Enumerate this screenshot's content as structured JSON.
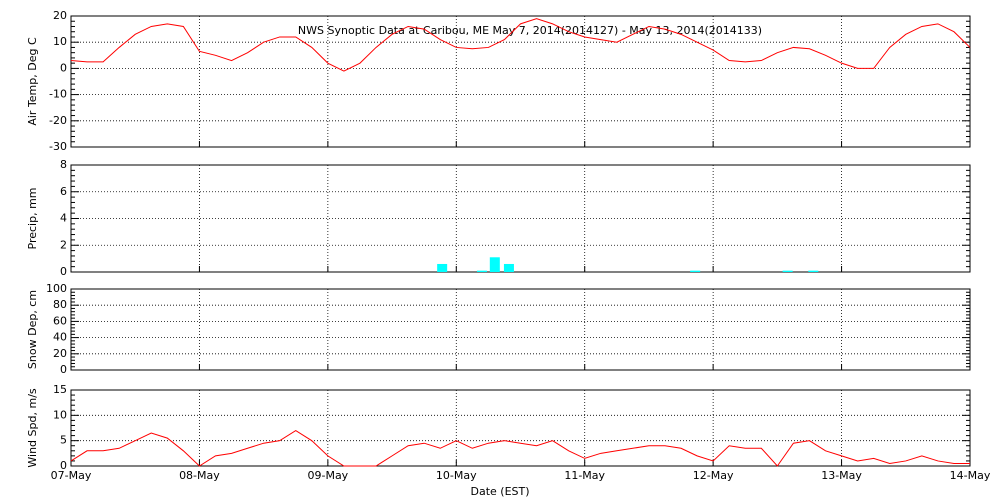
{
  "x_axis": {
    "xlabel": "Date (EST)",
    "xlim": [
      0,
      7
    ],
    "xticks": [
      {
        "value": 0,
        "label": "07-May"
      },
      {
        "value": 1,
        "label": "08-May"
      },
      {
        "value": 2,
        "label": "09-May"
      },
      {
        "value": 3,
        "label": "10-May"
      },
      {
        "value": 4,
        "label": "11-May"
      },
      {
        "value": 5,
        "label": "12-May"
      },
      {
        "value": 6,
        "label": "13-May"
      },
      {
        "value": 7,
        "label": "14-May"
      }
    ]
  },
  "chart_data": [
    {
      "type": "line",
      "title": "NWS Synoptic Data at Caribou, ME   May  7, 2014(2014127) - May 13, 2014(2014133)",
      "ylabel": "Air Temp, Deg C",
      "ylim": [
        -30,
        20
      ],
      "yticks": [
        -30,
        -20,
        -10,
        0,
        10,
        20
      ],
      "color": "#ff0000",
      "grid": true,
      "x": [
        0,
        0.125,
        0.25,
        0.375,
        0.5,
        0.625,
        0.75,
        0.875,
        1,
        1.125,
        1.25,
        1.375,
        1.5,
        1.625,
        1.75,
        1.875,
        2,
        2.125,
        2.25,
        2.375,
        2.5,
        2.625,
        2.75,
        2.875,
        3,
        3.125,
        3.25,
        3.375,
        3.5,
        3.625,
        3.75,
        3.875,
        4,
        4.125,
        4.25,
        4.375,
        4.5,
        4.625,
        4.75,
        4.875,
        5,
        5.125,
        5.25,
        5.375,
        5.5,
        5.625,
        5.75,
        5.875,
        6,
        6.125,
        6.25,
        6.375,
        6.5,
        6.625,
        6.75,
        6.875,
        7
      ],
      "values": [
        3,
        2.5,
        2.5,
        8,
        13,
        16,
        17,
        16,
        6.5,
        5,
        3,
        6,
        10,
        12,
        12,
        8,
        2,
        -1,
        2,
        8,
        13,
        16,
        15,
        11,
        8,
        7.5,
        8,
        11,
        17,
        19,
        17,
        14,
        12,
        11,
        10,
        13,
        16,
        15,
        13,
        10,
        7,
        3,
        2.5,
        3,
        6,
        8,
        7.5,
        5,
        2,
        0,
        0,
        8,
        13,
        16,
        17,
        14,
        8
      ]
    },
    {
      "type": "bar",
      "ylabel": "Precip, mm",
      "ylim": [
        0,
        8
      ],
      "yticks": [
        0,
        2,
        4,
        6,
        8
      ],
      "color": "#00ffff",
      "grid": true,
      "x": [
        2.89,
        3.2,
        3.3,
        3.41,
        4.86,
        5.58,
        5.78
      ],
      "values": [
        0.6,
        0.1,
        1.1,
        0.6,
        0.1,
        0.1,
        0.1
      ]
    },
    {
      "type": "line",
      "ylabel": "Snow Dep, cm",
      "ylim": [
        0,
        100
      ],
      "yticks": [
        0,
        20,
        40,
        60,
        80,
        100
      ],
      "color": "#ff0000",
      "grid": true,
      "x": [],
      "values": []
    },
    {
      "type": "line",
      "ylabel": "Wind Spd, m/s",
      "ylim": [
        0,
        15
      ],
      "yticks": [
        0,
        5,
        10,
        15
      ],
      "color": "#ff0000",
      "grid": true,
      "x": [
        0,
        0.125,
        0.25,
        0.375,
        0.5,
        0.625,
        0.75,
        0.875,
        1,
        1.125,
        1.25,
        1.375,
        1.5,
        1.625,
        1.75,
        1.875,
        2,
        2.125,
        2.25,
        2.375,
        2.5,
        2.625,
        2.75,
        2.875,
        3,
        3.125,
        3.25,
        3.375,
        3.5,
        3.625,
        3.75,
        3.875,
        4,
        4.125,
        4.25,
        4.375,
        4.5,
        4.625,
        4.75,
        4.875,
        5,
        5.125,
        5.25,
        5.375,
        5.5,
        5.625,
        5.75,
        5.875,
        6,
        6.125,
        6.25,
        6.375,
        6.5,
        6.625,
        6.75,
        6.875,
        7
      ],
      "values": [
        1,
        3,
        3,
        3.5,
        5,
        6.5,
        5.5,
        3,
        0,
        2,
        2.5,
        3.5,
        4.5,
        5,
        7,
        5,
        2,
        0,
        0,
        0,
        2,
        4,
        4.5,
        3.5,
        5,
        3.5,
        4.5,
        5,
        4.5,
        4,
        5,
        3,
        1.5,
        2.5,
        3,
        3.5,
        4,
        4,
        3.5,
        2,
        1,
        4,
        3.5,
        3.5,
        0,
        4.5,
        5,
        3,
        2,
        1,
        1.5,
        0.5,
        1,
        2,
        1,
        0.5,
        0.5
      ]
    }
  ]
}
